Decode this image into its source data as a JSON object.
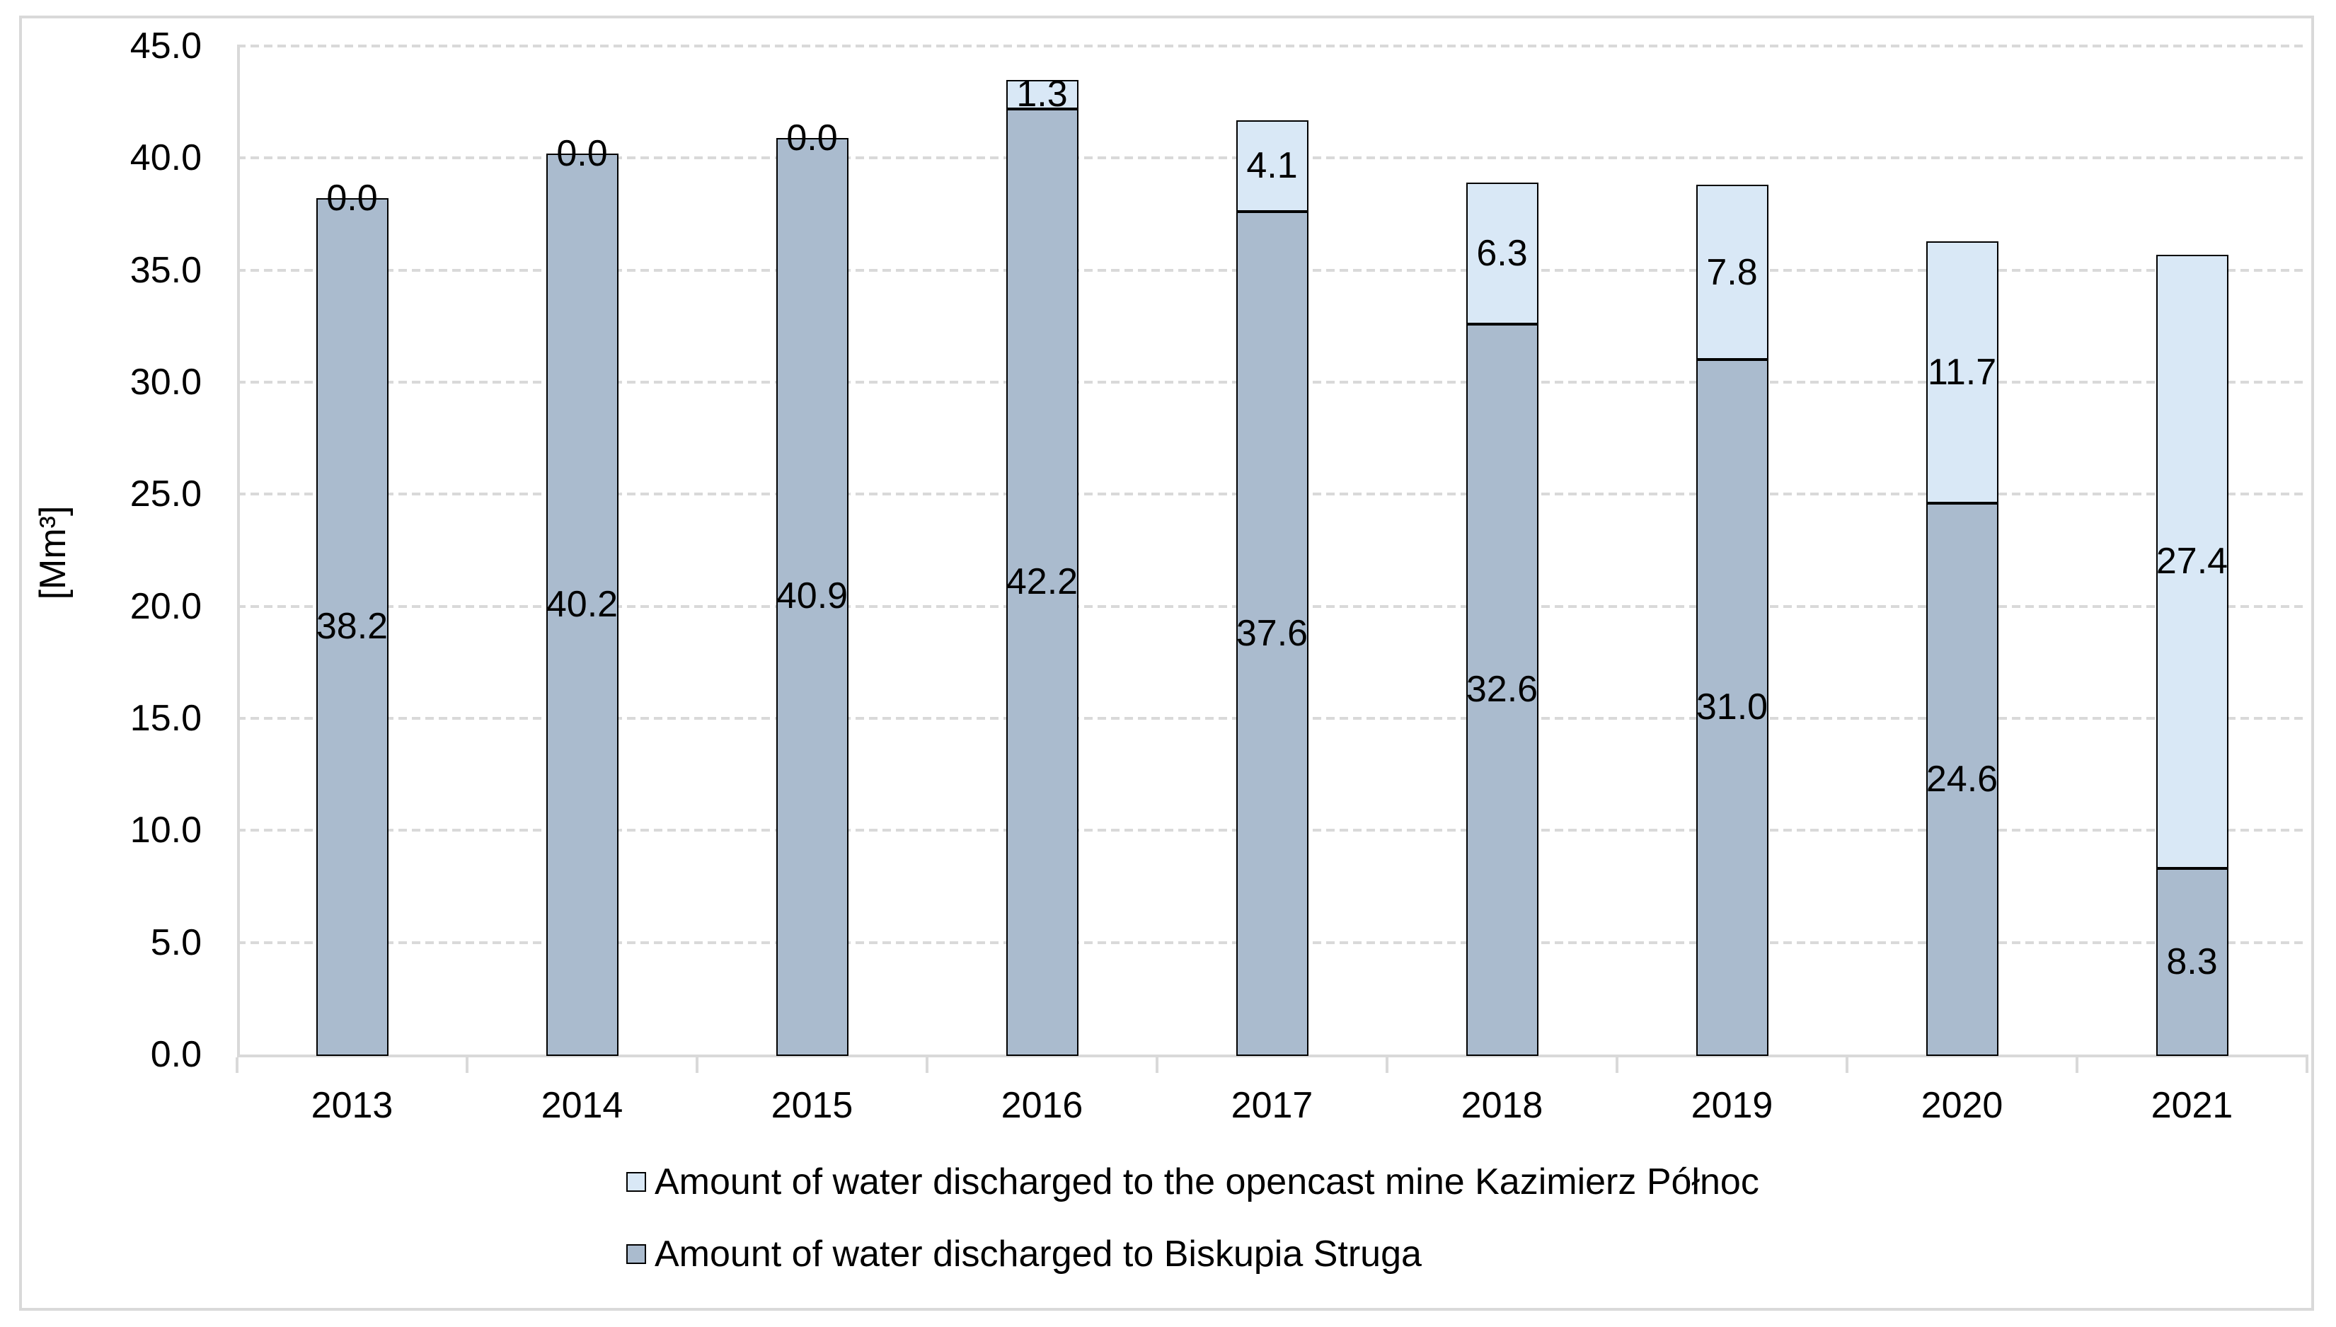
{
  "chart_data": {
    "type": "bar",
    "stacked": true,
    "title": "",
    "ylabel": "[Mm³]",
    "xlabel": "",
    "categories": [
      "2013",
      "2014",
      "2015",
      "2016",
      "2017",
      "2018",
      "2019",
      "2020",
      "2021"
    ],
    "series": [
      {
        "name": "Amount of water discharged to Biskupia Struga",
        "color": "#aabbce",
        "values": [
          38.2,
          40.2,
          40.9,
          42.2,
          37.6,
          32.6,
          31.0,
          24.6,
          8.3
        ]
      },
      {
        "name": "Amount of water discharged to the opencast mine Kazimierz Północ",
        "color": "#d9e8f6",
        "values": [
          0.0,
          0.0,
          0.0,
          1.3,
          4.1,
          6.3,
          7.8,
          11.7,
          27.4
        ]
      }
    ],
    "ylim": [
      0,
      45
    ],
    "ytick_step": 5,
    "yticks": [
      0,
      5,
      10,
      15,
      20,
      25,
      30,
      35,
      40,
      45
    ],
    "grid": "horizontal-dotted",
    "legend_position": "bottom",
    "legend_order": "top-series-first",
    "bar_border_color": "#000000",
    "axis_color": "#d9d9d9",
    "value_label_decimals": 1
  }
}
